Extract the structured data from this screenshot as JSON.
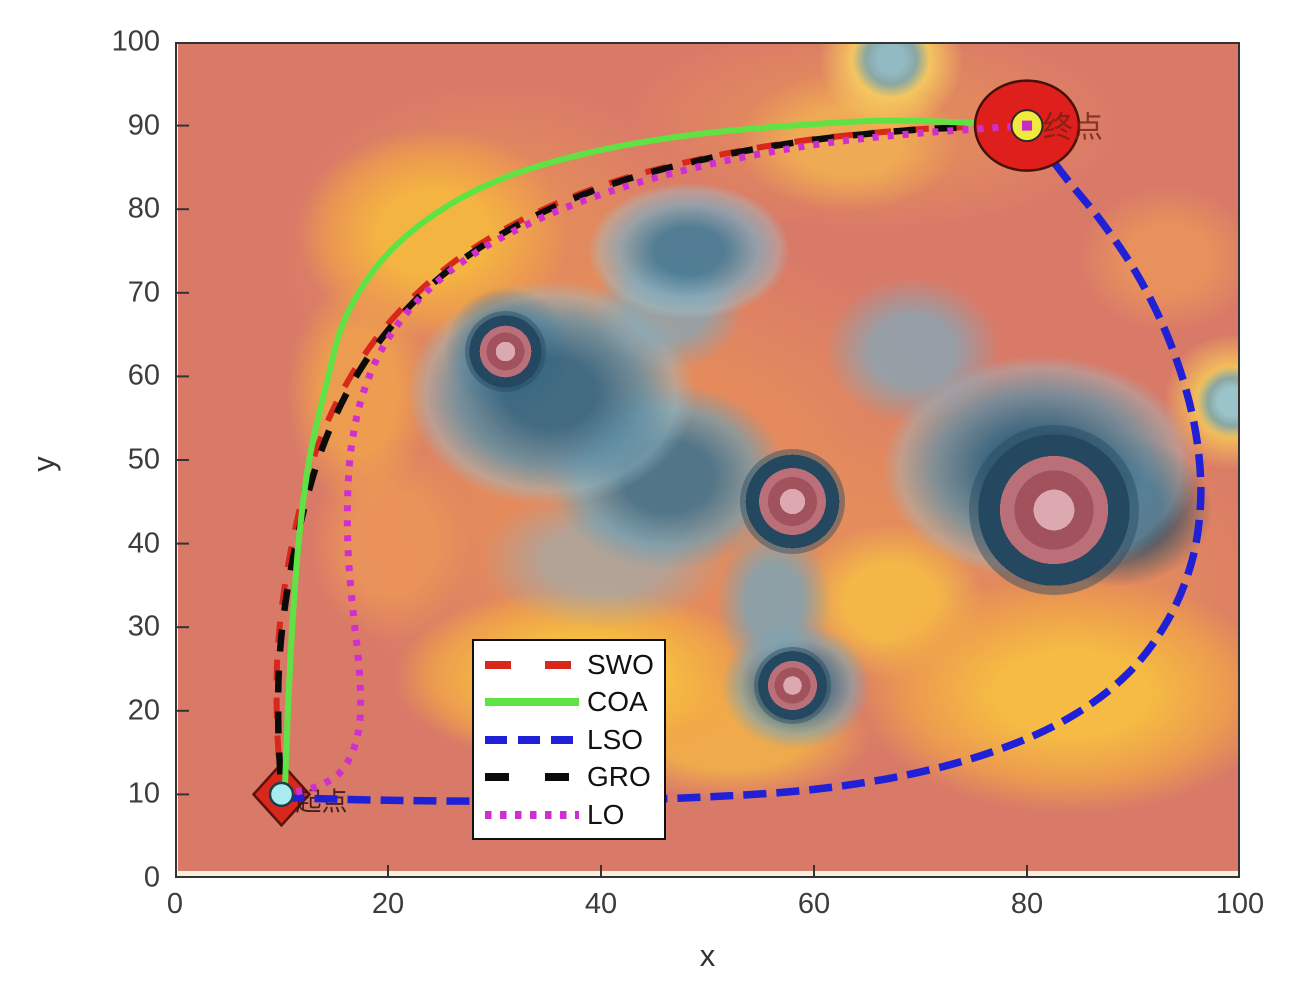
{
  "figure": {
    "background": "#FFFFFF",
    "description": "Path-planning comparison of five optimizers over a threat/cost heatmap"
  },
  "chart_data": {
    "type": "line",
    "title": "",
    "xlabel": "x",
    "ylabel": "y",
    "xlim": [
      0,
      100
    ],
    "ylim": [
      0,
      100
    ],
    "x_ticks": [
      0,
      20,
      40,
      60,
      80,
      100
    ],
    "y_ticks": [
      0,
      10,
      20,
      30,
      40,
      50,
      60,
      70,
      80,
      90,
      100
    ],
    "grid": false,
    "legend": {
      "position": "inside-bottom-center-left",
      "entries": [
        "SWO",
        "COA",
        "LSO",
        "GRO",
        "LO"
      ]
    },
    "start_point": {
      "x": 10,
      "y": 10,
      "label": "起点"
    },
    "end_point": {
      "x": 80,
      "y": 90,
      "label": "终点"
    },
    "obstacles": [
      {
        "x": 31,
        "y": 63,
        "r": 2.0
      },
      {
        "x": 58,
        "y": 45,
        "r": 2.6
      },
      {
        "x": 58,
        "y": 23,
        "r": 1.9
      },
      {
        "x": 82.5,
        "y": 44,
        "r": 4.2
      }
    ],
    "series": [
      {
        "name": "SWO",
        "color": "#D8281C",
        "style": "dashed",
        "width": 6,
        "dash": "21 17",
        "dash_offset": 0,
        "legend_dash": "26 34",
        "points": [
          [
            10,
            10
          ],
          [
            9.6,
            18
          ],
          [
            9.6,
            26
          ],
          [
            10.2,
            34
          ],
          [
            11.5,
            43
          ],
          [
            13.5,
            52
          ],
          [
            16.5,
            60
          ],
          [
            20.5,
            67
          ],
          [
            26,
            73.5
          ],
          [
            33,
            79
          ],
          [
            41,
            83.2
          ],
          [
            50,
            86.2
          ],
          [
            59,
            88.2
          ],
          [
            68,
            89.4
          ],
          [
            74,
            89.8
          ],
          [
            80,
            90
          ]
        ]
      },
      {
        "name": "COA",
        "color": "#5FE344",
        "style": "solid",
        "width": 6,
        "dash": null,
        "dash_offset": 0,
        "legend_dash": null,
        "points": [
          [
            10.3,
            10
          ],
          [
            10.6,
            20
          ],
          [
            11,
            30
          ],
          [
            11.6,
            40
          ],
          [
            12.6,
            50
          ],
          [
            14.2,
            59
          ],
          [
            16,
            67
          ],
          [
            19.5,
            74
          ],
          [
            24.5,
            79.5
          ],
          [
            31,
            83.8
          ],
          [
            39,
            86.8
          ],
          [
            48,
            88.8
          ],
          [
            58,
            90
          ],
          [
            68,
            90.6
          ],
          [
            80,
            90
          ]
        ]
      },
      {
        "name": "LSO",
        "color": "#2020D6",
        "style": "dashed",
        "width": 7.5,
        "dash": "23 10",
        "dash_offset": 0,
        "legend_dash": "22 11",
        "points": [
          [
            10,
            9.6
          ],
          [
            20,
            9.3
          ],
          [
            30,
            9.2
          ],
          [
            40,
            9.3
          ],
          [
            50,
            9.7
          ],
          [
            60,
            10.6
          ],
          [
            69,
            12.4
          ],
          [
            77,
            15.2
          ],
          [
            84,
            19.2
          ],
          [
            89.5,
            24.5
          ],
          [
            93.3,
            31
          ],
          [
            95.5,
            38
          ],
          [
            96.3,
            45
          ],
          [
            96,
            52
          ],
          [
            94.8,
            59
          ],
          [
            92.8,
            66
          ],
          [
            90.2,
            72.5
          ],
          [
            87,
            78.5
          ],
          [
            83.5,
            84
          ],
          [
            80,
            90
          ]
        ]
      },
      {
        "name": "GRO",
        "color": "#0B0B0B",
        "style": "dashed",
        "width": 6.5,
        "dash": "22 19",
        "dash_offset": 21,
        "legend_dash": "24 36",
        "points": [
          [
            10,
            10
          ],
          [
            9.7,
            18
          ],
          [
            9.8,
            26
          ],
          [
            10.5,
            34
          ],
          [
            11.9,
            43
          ],
          [
            14,
            52
          ],
          [
            17,
            60
          ],
          [
            21,
            67
          ],
          [
            26.5,
            73.5
          ],
          [
            33.5,
            79
          ],
          [
            41.5,
            83.2
          ],
          [
            50.5,
            86.2
          ],
          [
            59.5,
            88.2
          ],
          [
            68.5,
            89.4
          ],
          [
            74.5,
            89.8
          ],
          [
            80,
            90
          ]
        ]
      },
      {
        "name": "LO",
        "color": "#CF2FCF",
        "style": "dotted",
        "width": 7,
        "dash": "6 9",
        "dash_offset": 0,
        "legend_dash": "6.5 8.5",
        "points": [
          [
            10,
            10
          ],
          [
            13,
            10.8
          ],
          [
            15.4,
            12.5
          ],
          [
            16.8,
            15.5
          ],
          [
            17.4,
            19.5
          ],
          [
            17.3,
            25
          ],
          [
            16.8,
            31
          ],
          [
            16.3,
            38
          ],
          [
            16.2,
            45
          ],
          [
            16.6,
            52
          ],
          [
            17.8,
            58.5
          ],
          [
            20,
            64.5
          ],
          [
            23.5,
            70
          ],
          [
            28.5,
            75
          ],
          [
            35,
            79.3
          ],
          [
            42.5,
            82.8
          ],
          [
            51,
            85.6
          ],
          [
            60,
            87.7
          ],
          [
            69,
            89
          ],
          [
            80,
            90
          ]
        ]
      }
    ],
    "colors": {
      "field_base": "#D97A68",
      "field_warm": "#EC9A52",
      "field_high": "#F7C444",
      "field_cool": "#7FB0C0",
      "field_deep": "#2E5E78",
      "obstacle_pink": "#BB6F78",
      "obstacle_ring": "#23485F",
      "start_marker_fill": "#D8281C",
      "start_inner_marker": "#A9ECEF",
      "end_marker_fill": "#DE1F1C",
      "end_inner_marker": "#F1E93E",
      "end_inner_square": "#C92BC9",
      "axis": "#333333"
    }
  }
}
